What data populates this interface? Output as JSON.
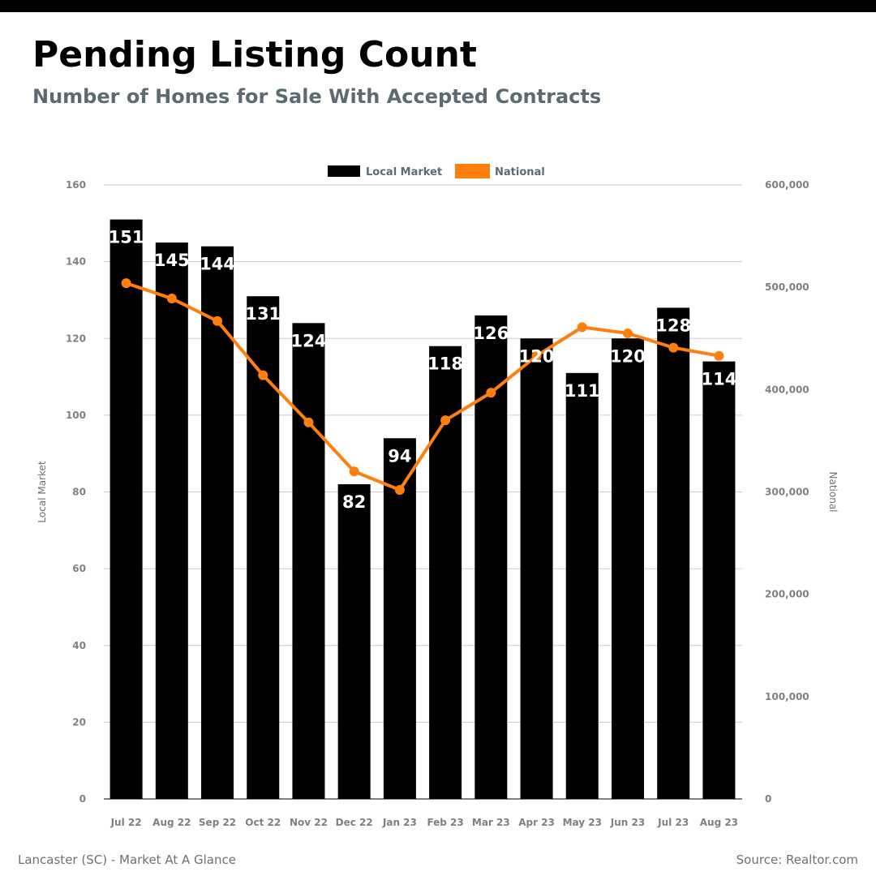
{
  "header": {
    "title": "Pending Listing Count",
    "subtitle": "Number of Homes for Sale With Accepted Contracts"
  },
  "footer": {
    "left": "Lancaster (SC) - Market At A Glance",
    "right": "Source: Realtor.com"
  },
  "colors": {
    "bar": "#000000",
    "line": "#ff7f0e",
    "grid": "#cccccc",
    "axis_text": "#808080",
    "legend_text": "#5b6b73"
  },
  "chart_data": {
    "type": "bar",
    "categories": [
      "Jul 22",
      "Aug 22",
      "Sep 22",
      "Oct 22",
      "Nov 22",
      "Dec 22",
      "Jan 23",
      "Feb 23",
      "Mar 23",
      "Apr 23",
      "May 23",
      "Jun 23",
      "Jul 23",
      "Aug 23"
    ],
    "series": [
      {
        "name": "Local Market",
        "type": "bar",
        "axis": "left",
        "values": [
          151,
          145,
          144,
          131,
          124,
          82,
          94,
          118,
          126,
          120,
          111,
          120,
          128,
          114
        ]
      },
      {
        "name": "National",
        "type": "line",
        "axis": "right",
        "values": [
          504000,
          489000,
          467000,
          414000,
          368000,
          320000,
          302000,
          370000,
          397000,
          433000,
          461000,
          455000,
          441000,
          433000
        ]
      }
    ],
    "ylabel": "Local Market",
    "ylabel_right": "National",
    "ylim": [
      0,
      160
    ],
    "ylim_right": [
      0,
      600000
    ],
    "yticks": [
      "0",
      "20",
      "40",
      "60",
      "80",
      "100",
      "120",
      "140",
      "160"
    ],
    "yticks_right": [
      "0",
      "100,000",
      "200,000",
      "300,000",
      "400,000",
      "500,000",
      "600,000"
    ],
    "grid": true,
    "legend_position": "top-center"
  }
}
